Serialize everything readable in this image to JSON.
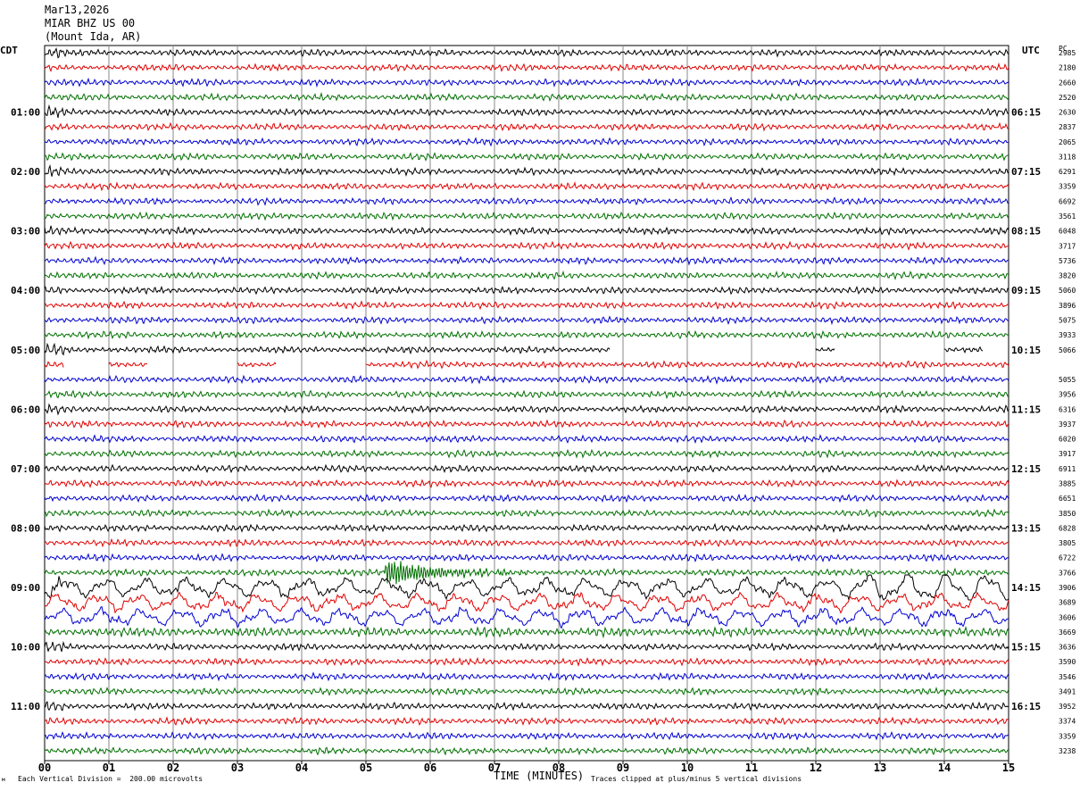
{
  "header": {
    "date": "Mar13,2026",
    "station": "MIAR BHZ US 00",
    "location": "(Mount Ida, AR)"
  },
  "labels": {
    "left_timezone": "CDT",
    "right_timezone": "UTC",
    "right_column_header": "PC"
  },
  "footer": {
    "vertical_division": "Each Vertical Division =  200.00 microvolts",
    "clip_note": "Traces clipped at plus/minus 5 vertical divisions"
  },
  "chart_data": {
    "type": "line",
    "xlabel": "TIME (MINUTES)",
    "xlim": [
      0,
      15
    ],
    "x_ticks": [
      "00",
      "01",
      "02",
      "03",
      "04",
      "05",
      "06",
      "07",
      "08",
      "09",
      "10",
      "11",
      "12",
      "13",
      "14",
      "15"
    ],
    "trace_colors": [
      "#000000",
      "#e00000",
      "#0000d0",
      "#007000"
    ],
    "trace_count": 48,
    "minutes_per_trace": 15,
    "left_hour_labels": [
      "01:00",
      "02:00",
      "03:00",
      "04:00",
      "05:00",
      "06:00",
      "07:00",
      "08:00",
      "09:00",
      "10:00",
      "11:00"
    ],
    "right_hour_labels": [
      "06:15",
      "07:15",
      "08:15",
      "09:15",
      "10:15",
      "11:15",
      "12:15",
      "13:15",
      "14:15",
      "15:15",
      "16:15"
    ],
    "hour_label_trace_index": [
      4,
      8,
      12,
      16,
      20,
      24,
      28,
      32,
      36,
      40,
      44
    ],
    "pc_values": [
      "2985",
      "2180",
      "2660",
      "2520",
      "2630",
      "2837",
      "2065",
      "3118",
      "6291",
      "3359",
      "6692",
      "3561",
      "6048",
      "3717",
      "5736",
      "3820",
      "5060",
      "3896",
      "5075",
      "3933",
      "5066",
      "",
      "5055",
      "3956",
      "6316",
      "3937",
      "6020",
      "3917",
      "6911",
      "3885",
      "6651",
      "3850",
      "6828",
      "3805",
      "6722",
      "3766",
      "3906",
      "3689",
      "3606",
      "3669",
      "3636",
      "3590",
      "3546",
      "3491",
      "3952",
      "3374",
      "3359",
      "3238"
    ],
    "gaps": [
      {
        "trace": 20,
        "from_min": 8.8,
        "to_min": 12.0
      },
      {
        "trace": 20,
        "from_min": 12.3,
        "to_min": 14.0
      },
      {
        "trace": 20,
        "from_min": 14.6,
        "to_min": 15.0
      },
      {
        "trace": 21,
        "from_min": 0.3,
        "to_min": 1.0
      },
      {
        "trace": 21,
        "from_min": 1.6,
        "to_min": 3.0
      },
      {
        "trace": 21,
        "from_min": 3.6,
        "to_min": 5.0
      }
    ],
    "events": [
      {
        "trace": 35,
        "at_min": 5.3,
        "description": "local event"
      },
      {
        "trace": 36,
        "at_min": 12.8,
        "description": "teleseism arrival"
      }
    ]
  }
}
